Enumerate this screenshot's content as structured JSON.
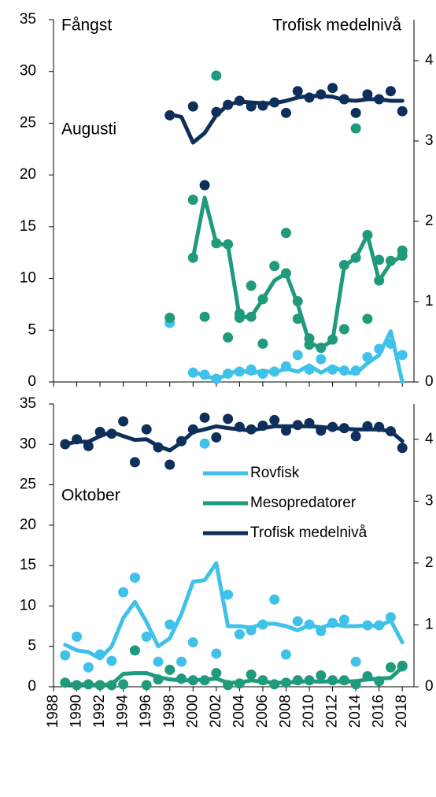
{
  "chart_data": [
    {
      "type": "line",
      "annotations": [
        "Fångst",
        "Trofisk medelnivå",
        "Augusti"
      ],
      "xlim": [
        1988,
        2019
      ],
      "ylim": [
        0,
        35
      ],
      "yticks": [
        0,
        5,
        10,
        15,
        20,
        25,
        30,
        35
      ],
      "y2lim": [
        0,
        4.51
      ],
      "y2ticks": [
        0,
        1,
        2,
        3,
        4
      ],
      "x": [
        1998,
        1999,
        2000,
        2001,
        2002,
        2003,
        2004,
        2005,
        2006,
        2007,
        2008,
        2009,
        2010,
        2011,
        2012,
        2013,
        2014,
        2015,
        2016,
        2017,
        2018
      ],
      "series": [
        {
          "color": "#3fc1e9",
          "values": [
            null,
            null,
            1,
            0.6,
            0.3,
            0.7,
            1.2,
            0.8,
            1.1,
            0.9,
            1.3,
            1,
            1.6,
            0.9,
            1.5,
            1,
            0.8,
            1.8,
            2.6,
            4.9,
            0
          ],
          "points": {
            "x": [
              1998,
              2000,
              2001,
              2002,
              2003,
              2004,
              2005,
              2006,
              2007,
              2008,
              2009,
              2010,
              2011,
              2012,
              2013,
              2014,
              2015,
              2016,
              2017,
              2018
            ],
            "values": [
              5.7,
              0.9,
              0.7,
              0.3,
              0.8,
              1,
              1.2,
              0.8,
              1,
              1.5,
              2.6,
              1.2,
              2.2,
              1.2,
              1.1,
              1.1,
              2.4,
              3.2,
              3.7,
              2.6
            ]
          }
        },
        {
          "color": "#1f9a7a",
          "values": [
            null,
            null,
            12,
            17.8,
            13.4,
            13.2,
            6.3,
            6.3,
            8,
            9.8,
            10.5,
            7.5,
            3.8,
            3.3,
            4,
            11.2,
            12,
            14.2,
            9.8,
            11.5,
            12.2
          ],
          "points": {
            "x": [
              1998,
              2000,
              2000,
              2001,
              2002,
              2002,
              2003,
              2003,
              2004,
              2004,
              2005,
              2005,
              2006,
              2006,
              2007,
              2008,
              2008,
              2009,
              2009,
              2010,
              2010,
              2011,
              2012,
              2013,
              2013,
              2014,
              2014,
              2015,
              2015,
              2016,
              2016,
              2017,
              2018,
              2018
            ],
            "values": [
              6.2,
              17.6,
              12,
              6.3,
              13.4,
              29.6,
              4.3,
              13.3,
              6.6,
              6.2,
              9.3,
              6.3,
              3.7,
              8,
              11.2,
              14.4,
              10.5,
              6.1,
              7.8,
              3.6,
              4.2,
              3.3,
              4.1,
              5.1,
              11.3,
              12,
              24.5,
              6.1,
              14.2,
              11.8,
              9.8,
              11.7,
              12.7,
              12.2
            ]
          }
        },
        {
          "color": "#0d2f5a",
          "axis": "y2",
          "values": [
            3.33,
            3.3,
            2.98,
            3.1,
            3.32,
            3.45,
            3.49,
            3.48,
            3.47,
            3.47,
            3.5,
            3.54,
            3.56,
            3.56,
            3.55,
            3.51,
            3.5,
            3.52,
            3.52,
            3.5,
            3.5
          ],
          "points": {
            "x": [
              1998,
              2000,
              2001,
              2002,
              2003,
              2004,
              2005,
              2006,
              2007,
              2008,
              2009,
              2010,
              2011,
              2012,
              2013,
              2014,
              2015,
              2016,
              2017,
              2018
            ],
            "values": [
              3.32,
              3.43,
              2.45,
              3.36,
              3.45,
              3.5,
              3.43,
              3.44,
              3.48,
              3.35,
              3.62,
              3.54,
              3.58,
              3.66,
              3.52,
              3.35,
              3.58,
              3.52,
              3.62,
              3.37
            ]
          }
        }
      ]
    },
    {
      "type": "line",
      "annotations": [
        "Oktober"
      ],
      "xlim": [
        1988,
        2019
      ],
      "xticks": [
        1988,
        1990,
        1992,
        1994,
        1996,
        1998,
        2000,
        2002,
        2004,
        2006,
        2008,
        2010,
        2012,
        2014,
        2016,
        2018
      ],
      "ylim": [
        0,
        35
      ],
      "yticks": [
        0,
        5,
        10,
        15,
        20,
        25,
        30,
        35
      ],
      "y2lim": [
        0,
        4.57
      ],
      "y2ticks": [
        0,
        1,
        2,
        3,
        4
      ],
      "x": [
        1989,
        1990,
        1991,
        1992,
        1993,
        1994,
        1995,
        1996,
        1997,
        1998,
        1999,
        2000,
        2001,
        2002,
        2003,
        2004,
        2005,
        2006,
        2007,
        2008,
        2009,
        2010,
        2011,
        2012,
        2013,
        2014,
        2015,
        2016,
        2017,
        2018
      ],
      "series": [
        {
          "name": "Rovfisk",
          "color": "#3fc1e9",
          "values": [
            5.2,
            4.5,
            4.3,
            3.5,
            5,
            8.5,
            10.5,
            8,
            5,
            6,
            9,
            13,
            13.2,
            15.3,
            7.5,
            7.5,
            7.3,
            7.8,
            7.8,
            7.5,
            7,
            7.6,
            7.3,
            7.8,
            7.5,
            7.5,
            7.6,
            7.5,
            8.2,
            5.5
          ],
          "points": {
            "x": [
              1989,
              1990,
              1991,
              1992,
              1993,
              1994,
              1995,
              1996,
              1997,
              1998,
              1999,
              2000,
              2001,
              2002,
              2003,
              2004,
              2005,
              2006,
              2007,
              2008,
              2009,
              2010,
              2011,
              2012,
              2013,
              2014,
              2015,
              2016,
              2017,
              2018
            ],
            "values": [
              3.9,
              6.2,
              2.4,
              4,
              3.2,
              11.7,
              13.5,
              6.2,
              3.1,
              7.7,
              3.1,
              5.5,
              30.1,
              4.1,
              11.4,
              6.5,
              7,
              7.7,
              10.8,
              4,
              8.1,
              7.7,
              6.9,
              7.9,
              8.3,
              3.1,
              7.6,
              7.6,
              8.6,
              2.5
            ]
          }
        },
        {
          "name": "Mesopredatorer",
          "color": "#1f9a7a",
          "values": [
            0.3,
            0.3,
            0.3,
            0.2,
            0.3,
            1.6,
            1.7,
            1.7,
            1.2,
            0.9,
            0.8,
            0.8,
            0.9,
            1,
            0.5,
            0.5,
            0.8,
            0.6,
            0.5,
            0.5,
            0.6,
            0.7,
            0.6,
            0.7,
            0.6,
            0.7,
            0.9,
            1,
            1.1,
            2.4
          ],
          "points": {
            "x": [
              1989,
              1990,
              1991,
              1992,
              1993,
              1994,
              1995,
              1996,
              1997,
              1998,
              1999,
              2000,
              2001,
              2002,
              2003,
              2004,
              2005,
              2006,
              2007,
              2008,
              2009,
              2010,
              2011,
              2012,
              2013,
              2014,
              2015,
              2016,
              2017,
              2018
            ],
            "values": [
              0.5,
              0.2,
              0.3,
              0.2,
              0.2,
              0.3,
              4.5,
              0.2,
              0.9,
              2.1,
              1,
              0.8,
              0.8,
              1.7,
              0.2,
              0.4,
              1.5,
              0.8,
              0.3,
              0.5,
              0.8,
              0.8,
              1.4,
              0.8,
              0.8,
              0.3,
              1.3,
              0.7,
              2.4,
              2.6
            ]
          }
        },
        {
          "name": "Trofisk medelnivå",
          "color": "#0d2f5a",
          "axis": "y2",
          "values": [
            3.92,
            3.96,
            3.96,
            4.05,
            4.12,
            4.05,
            3.99,
            4.0,
            3.89,
            3.82,
            3.95,
            4.12,
            4.16,
            4.21,
            4.18,
            4.16,
            4.14,
            4.18,
            4.21,
            4.21,
            4.21,
            4.21,
            4.2,
            4.18,
            4.17,
            4.16,
            4.16,
            4.16,
            4.13,
            3.97
          ],
          "points": {
            "x": [
              1989,
              1990,
              1991,
              1992,
              1993,
              1994,
              1995,
              1996,
              1997,
              1998,
              1999,
              2000,
              2001,
              2002,
              2003,
              2004,
              2005,
              2006,
              2007,
              2008,
              2009,
              2010,
              2011,
              2012,
              2013,
              2014,
              2015,
              2016,
              2017,
              2018
            ],
            "values": [
              3.92,
              4.0,
              3.89,
              4.12,
              4.09,
              4.29,
              3.63,
              4.16,
              3.87,
              3.59,
              3.97,
              4.16,
              4.35,
              4.03,
              4.33,
              4.2,
              4.16,
              4.22,
              4.31,
              4.14,
              4.23,
              4.26,
              4.14,
              4.2,
              4.18,
              4.05,
              4.21,
              4.2,
              4.13,
              3.86
            ]
          }
        }
      ]
    }
  ]
}
